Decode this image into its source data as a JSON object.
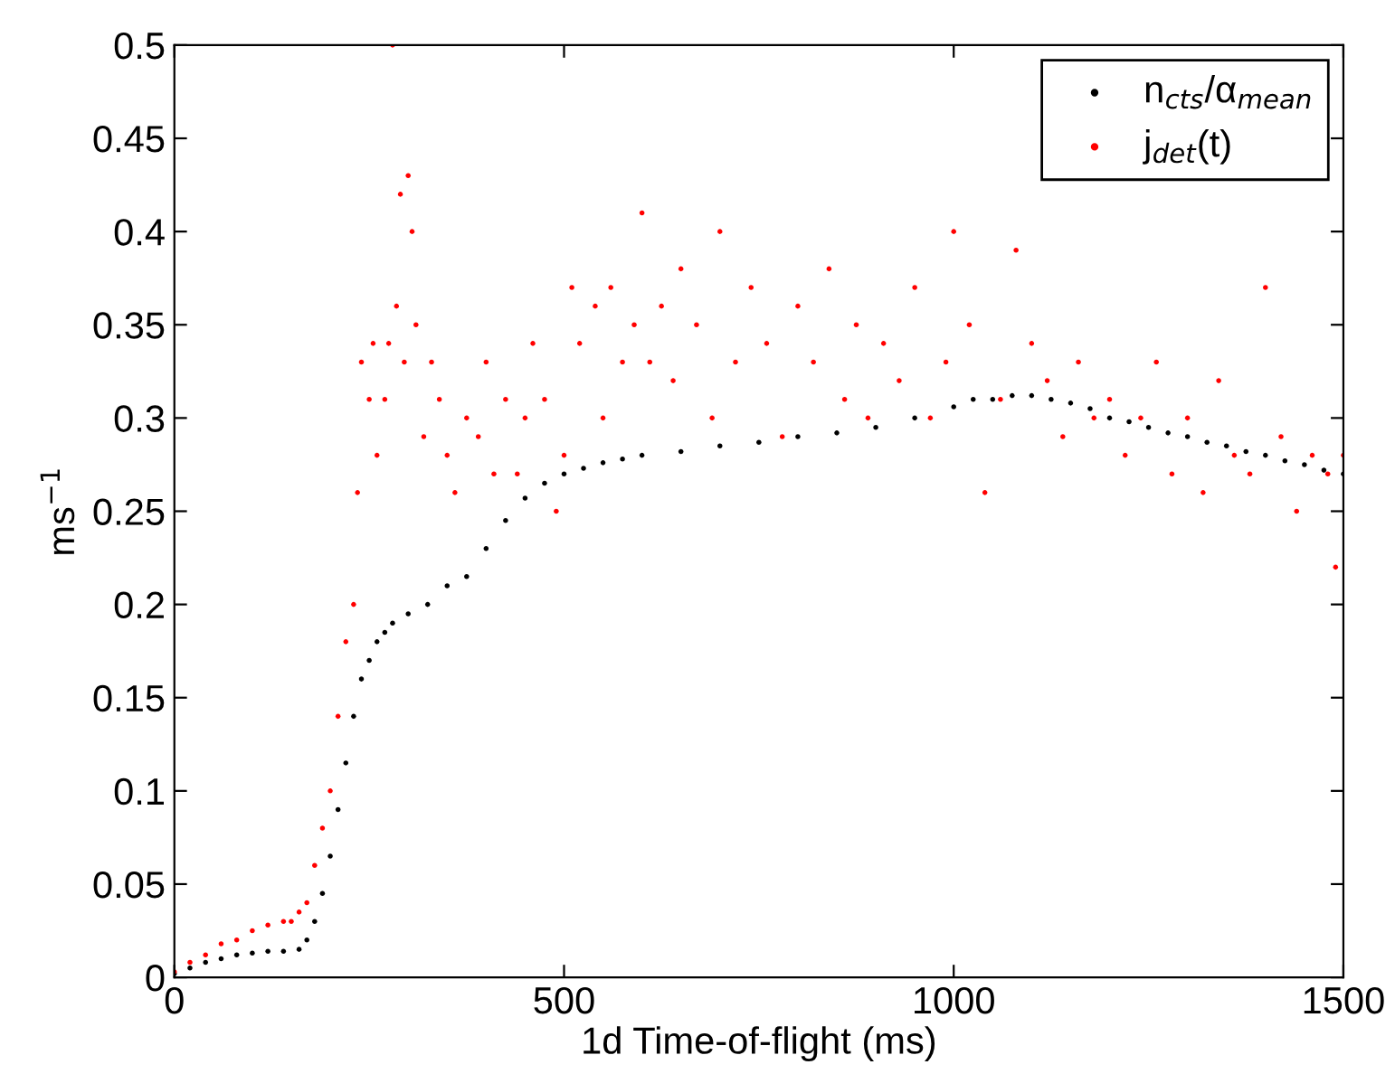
{
  "chart_data": {
    "type": "scatter",
    "xlabel": "1d Time-of-flight (ms)",
    "ylabel": "ms$^{−1}$",
    "xlim": [
      0,
      1500
    ],
    "ylim": [
      0,
      0.5
    ],
    "xticks": [
      0,
      500,
      1000,
      1500
    ],
    "yticks": [
      0,
      0.05,
      0.1,
      0.15,
      0.2,
      0.25,
      0.3,
      0.35,
      0.4,
      0.45,
      0.5
    ],
    "grid": false,
    "legend": "top right",
    "marker": "circle",
    "series": [
      {
        "name": "n$_{cts}$/α$_{mean}$",
        "color": "#000000",
        "x": [
          0,
          20,
          40,
          60,
          80,
          100,
          120,
          140,
          160,
          170,
          180,
          190,
          200,
          210,
          220,
          230,
          240,
          250,
          260,
          270,
          280,
          300,
          325,
          350,
          375,
          400,
          425,
          450,
          475,
          500,
          525,
          550,
          575,
          600,
          650,
          700,
          750,
          800,
          850,
          900,
          950,
          1000,
          1025,
          1050,
          1075,
          1100,
          1125,
          1150,
          1175,
          1200,
          1225,
          1250,
          1275,
          1300,
          1325,
          1350,
          1375,
          1400,
          1425,
          1450,
          1475,
          1500
        ],
        "values": [
          0.002,
          0.005,
          0.008,
          0.01,
          0.012,
          0.013,
          0.014,
          0.014,
          0.015,
          0.02,
          0.03,
          0.045,
          0.065,
          0.09,
          0.115,
          0.14,
          0.16,
          0.17,
          0.18,
          0.185,
          0.19,
          0.195,
          0.2,
          0.21,
          0.215,
          0.23,
          0.245,
          0.257,
          0.265,
          0.27,
          0.273,
          0.276,
          0.278,
          0.28,
          0.282,
          0.285,
          0.287,
          0.29,
          0.292,
          0.295,
          0.3,
          0.306,
          0.31,
          0.31,
          0.312,
          0.312,
          0.31,
          0.308,
          0.305,
          0.3,
          0.298,
          0.295,
          0.292,
          0.29,
          0.287,
          0.285,
          0.282,
          0.28,
          0.277,
          0.275,
          0.272,
          0.27
        ]
      },
      {
        "name": "j$_{det}$(t)",
        "color": "#ff0000",
        "x": [
          0,
          20,
          40,
          60,
          80,
          100,
          120,
          140,
          150,
          160,
          170,
          180,
          190,
          200,
          210,
          220,
          230,
          235,
          240,
          250,
          255,
          260,
          270,
          275,
          280,
          285,
          290,
          295,
          300,
          305,
          310,
          320,
          330,
          340,
          350,
          360,
          375,
          390,
          400,
          410,
          425,
          440,
          450,
          460,
          475,
          490,
          500,
          510,
          520,
          540,
          550,
          560,
          575,
          590,
          600,
          610,
          625,
          640,
          650,
          670,
          690,
          700,
          720,
          740,
          760,
          780,
          800,
          820,
          840,
          860,
          875,
          890,
          910,
          930,
          950,
          970,
          990,
          1000,
          1020,
          1040,
          1060,
          1080,
          1100,
          1120,
          1140,
          1160,
          1180,
          1200,
          1220,
          1240,
          1260,
          1280,
          1300,
          1320,
          1340,
          1360,
          1380,
          1400,
          1420,
          1440,
          1460,
          1480,
          1490,
          1500
        ],
        "values": [
          0.003,
          0.008,
          0.012,
          0.018,
          0.02,
          0.025,
          0.028,
          0.03,
          0.03,
          0.035,
          0.04,
          0.06,
          0.08,
          0.1,
          0.14,
          0.18,
          0.2,
          0.26,
          0.33,
          0.31,
          0.34,
          0.28,
          0.31,
          0.34,
          0.5,
          0.36,
          0.42,
          0.33,
          0.43,
          0.4,
          0.35,
          0.29,
          0.33,
          0.31,
          0.28,
          0.26,
          0.3,
          0.29,
          0.33,
          0.27,
          0.31,
          0.27,
          0.3,
          0.34,
          0.31,
          0.25,
          0.28,
          0.37,
          0.34,
          0.36,
          0.3,
          0.37,
          0.33,
          0.35,
          0.41,
          0.33,
          0.36,
          0.32,
          0.38,
          0.35,
          0.3,
          0.4,
          0.33,
          0.37,
          0.34,
          0.29,
          0.36,
          0.33,
          0.38,
          0.31,
          0.35,
          0.3,
          0.34,
          0.32,
          0.37,
          0.3,
          0.33,
          0.4,
          0.35,
          0.26,
          0.31,
          0.39,
          0.34,
          0.32,
          0.29,
          0.33,
          0.3,
          0.31,
          0.28,
          0.3,
          0.33,
          0.27,
          0.3,
          0.26,
          0.32,
          0.28,
          0.27,
          0.37,
          0.29,
          0.25,
          0.28,
          0.27,
          0.22,
          0.28
        ]
      }
    ]
  }
}
